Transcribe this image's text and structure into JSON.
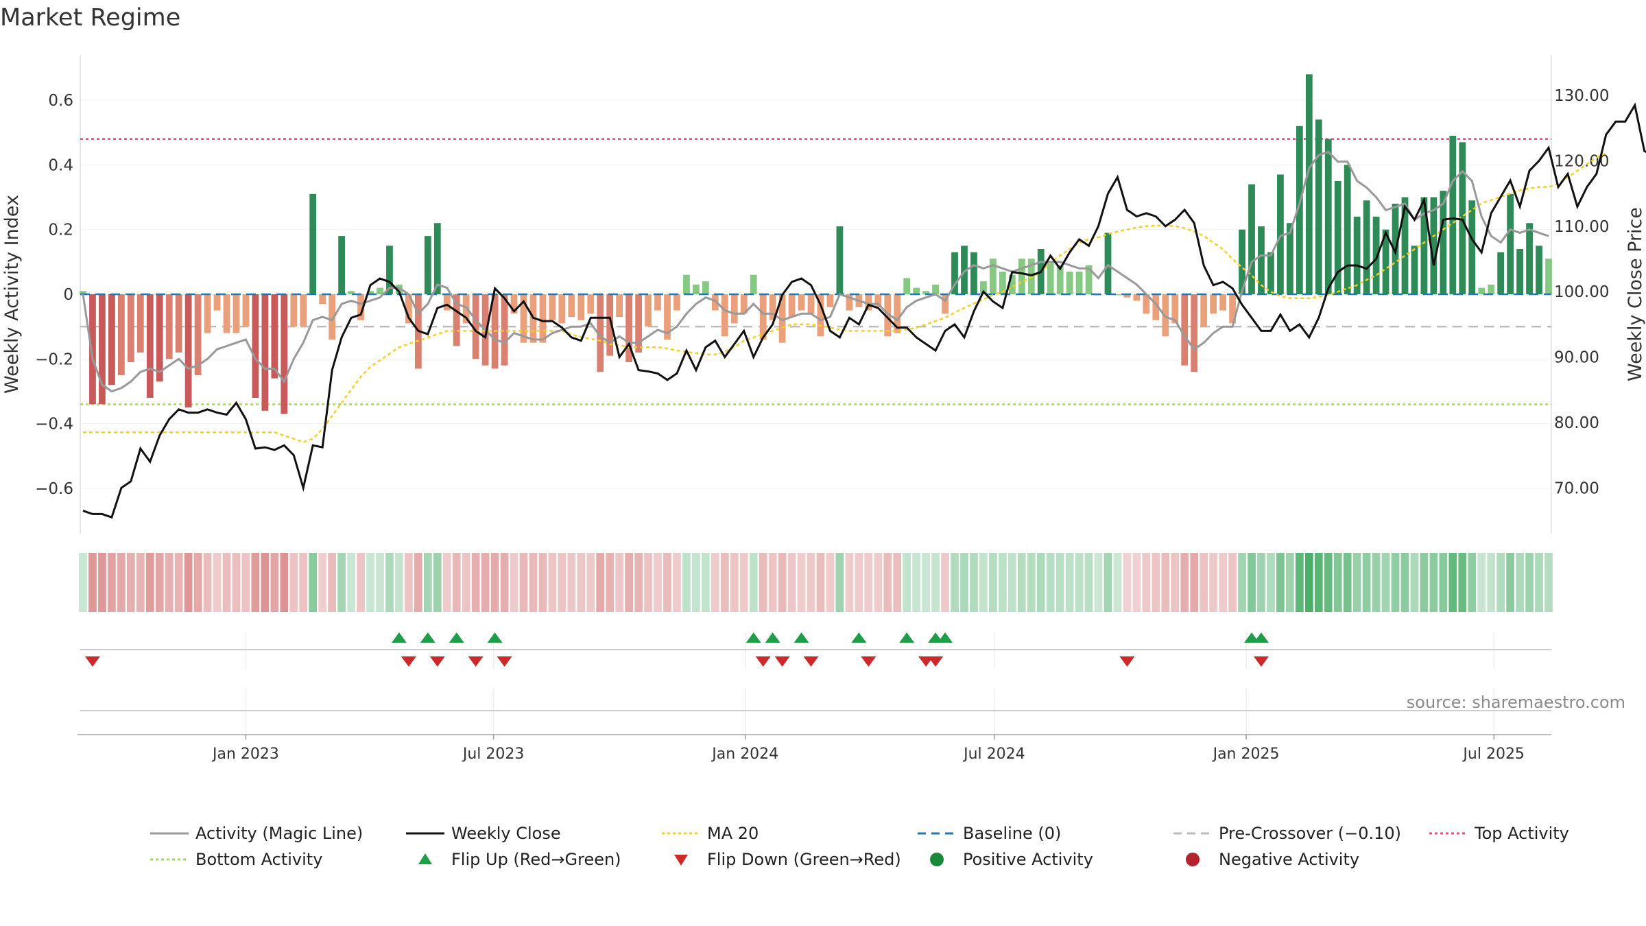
{
  "title": "Market Regime",
  "source": "source: sharemaestro.com",
  "colors": {
    "activity_line": "#999999",
    "close_line": "#111111",
    "ma20": "#f2d024",
    "baseline": "#1f77b4",
    "pre_crossover": "#bbbbbb",
    "top_activity": "#e8497a",
    "bottom_activity": "#a6d96a",
    "flip_up": "#1f9e4a",
    "flip_down": "#cc2a2a",
    "positive_activity": "#1a8a3a",
    "negative_activity": "#b5232c",
    "pos_strong": "#2e8b57",
    "pos_light": "#86c983",
    "neg_strong": "#c85a5a",
    "neg_light": "#eba07c"
  },
  "chart_data": {
    "type": "bar",
    "x_start": "2022-09-04",
    "x_step_days": 7,
    "x_ticks": [
      "Jan 2023",
      "Jul 2023",
      "Jan 2024",
      "Jul 2024",
      "Jan 2025",
      "Jul 2025"
    ],
    "x_tick_dates": [
      "2023-01-01",
      "2023-07-01",
      "2024-01-01",
      "2024-07-01",
      "2025-01-01",
      "2025-07-01"
    ],
    "y_left": {
      "label": "Weekly Activity Index",
      "ticks": [
        "0.6",
        "0.4",
        "0.2",
        "0",
        "−0.2",
        "−0.4",
        "−0.6"
      ],
      "tick_values": [
        0.6,
        0.4,
        0.2,
        0,
        -0.2,
        -0.4,
        -0.6
      ],
      "lim": [
        -0.74,
        0.74
      ]
    },
    "y_right": {
      "label": "Weekly Close Price",
      "ticks": [
        "130.00",
        "120.00",
        "110.00",
        "100.00",
        "90.00",
        "80.00",
        "70.00"
      ],
      "tick_values": [
        130,
        120,
        110,
        100,
        90,
        80,
        70
      ],
      "lim": [
        63,
        136.2
      ]
    },
    "reference_lines": {
      "top_activity": 0.48,
      "bottom_activity": -0.34,
      "baseline": 0,
      "pre_crossover": -0.1
    },
    "activity": [
      0.01,
      -0.34,
      -0.34,
      -0.28,
      -0.25,
      -0.21,
      -0.18,
      -0.32,
      -0.27,
      -0.2,
      -0.18,
      -0.35,
      -0.25,
      -0.12,
      -0.05,
      -0.12,
      -0.12,
      -0.1,
      -0.32,
      -0.36,
      -0.26,
      -0.37,
      -0.1,
      -0.1,
      0.31,
      -0.03,
      -0.14,
      0.18,
      0.01,
      -0.08,
      0.01,
      0.02,
      0.15,
      0.03,
      -0.09,
      -0.23,
      0.18,
      0.22,
      -0.05,
      -0.16,
      -0.09,
      -0.2,
      -0.22,
      -0.23,
      -0.22,
      -0.06,
      -0.15,
      -0.15,
      -0.15,
      -0.08,
      -0.09,
      -0.07,
      -0.08,
      -0.06,
      -0.24,
      -0.19,
      -0.07,
      -0.21,
      -0.18,
      -0.1,
      -0.05,
      -0.14,
      -0.05,
      0.06,
      0.03,
      0.04,
      -0.05,
      -0.13,
      -0.09,
      -0.06,
      0.06,
      -0.14,
      -0.08,
      -0.15,
      -0.07,
      -0.05,
      -0.06,
      -0.13,
      -0.04,
      0.21,
      -0.05,
      -0.04,
      -0.05,
      -0.04,
      -0.13,
      -0.12,
      0.05,
      0.02,
      0.01,
      0.03,
      -0.06,
      0.13,
      0.15,
      0.13,
      0.04,
      0.11,
      0.07,
      0.06,
      0.11,
      0.11,
      0.14,
      0.1,
      0.09,
      0.07,
      0.07,
      0.09,
      0.0,
      0.19,
      0.0,
      -0.01,
      -0.02,
      -0.06,
      -0.08,
      -0.13,
      -0.09,
      -0.22,
      -0.24,
      -0.1,
      -0.06,
      -0.05,
      -0.09,
      0.2,
      0.34,
      0.21,
      0.13,
      0.37,
      0.22,
      0.52,
      0.68,
      0.54,
      0.48,
      0.35,
      0.4,
      0.24,
      0.29,
      0.24,
      0.2,
      0.28,
      0.3,
      0.15,
      0.3,
      0.3,
      0.32,
      0.49,
      0.47,
      0.29,
      0.02,
      0.03,
      0.13,
      0.31,
      0.14,
      0.22,
      0.15,
      0.11
    ],
    "activity_magic_line": [
      0.0,
      -0.2,
      -0.28,
      -0.3,
      -0.29,
      -0.27,
      -0.24,
      -0.23,
      -0.24,
      -0.22,
      -0.2,
      -0.23,
      -0.22,
      -0.2,
      -0.17,
      -0.16,
      -0.15,
      -0.14,
      -0.2,
      -0.23,
      -0.23,
      -0.27,
      -0.2,
      -0.15,
      -0.08,
      -0.07,
      -0.08,
      -0.03,
      -0.02,
      -0.03,
      -0.02,
      -0.01,
      0.02,
      0.02,
      0.0,
      -0.06,
      -0.03,
      0.03,
      0.02,
      -0.03,
      -0.04,
      -0.08,
      -0.11,
      -0.14,
      -0.15,
      -0.12,
      -0.13,
      -0.14,
      -0.14,
      -0.12,
      -0.11,
      -0.1,
      -0.1,
      -0.09,
      -0.13,
      -0.15,
      -0.13,
      -0.15,
      -0.15,
      -0.13,
      -0.11,
      -0.12,
      -0.1,
      -0.06,
      -0.03,
      -0.01,
      -0.02,
      -0.05,
      -0.06,
      -0.06,
      -0.03,
      -0.06,
      -0.06,
      -0.08,
      -0.07,
      -0.06,
      -0.06,
      -0.08,
      -0.07,
      0.0,
      -0.01,
      -0.02,
      -0.03,
      -0.03,
      -0.06,
      -0.08,
      -0.04,
      -0.02,
      -0.01,
      0.0,
      -0.02,
      0.03,
      0.07,
      0.09,
      0.08,
      0.09,
      0.08,
      0.07,
      0.08,
      0.09,
      0.1,
      0.1,
      0.1,
      0.09,
      0.08,
      0.08,
      0.05,
      0.09,
      0.07,
      0.05,
      0.03,
      0.0,
      -0.03,
      -0.07,
      -0.08,
      -0.13,
      -0.17,
      -0.15,
      -0.12,
      -0.1,
      -0.1,
      0.01,
      0.1,
      0.12,
      0.12,
      0.18,
      0.19,
      0.28,
      0.39,
      0.43,
      0.44,
      0.41,
      0.41,
      0.35,
      0.33,
      0.3,
      0.26,
      0.27,
      0.28,
      0.23,
      0.25,
      0.26,
      0.28,
      0.35,
      0.38,
      0.35,
      0.24,
      0.18,
      0.16,
      0.2,
      0.19,
      0.2,
      0.19,
      0.18
    ],
    "weekly_close": [
      66.5,
      66,
      66,
      65.5,
      70,
      71,
      76,
      74,
      78,
      80.5,
      82,
      81.5,
      81.5,
      82,
      81.5,
      81.2,
      83,
      80.5,
      76,
      76.2,
      75.8,
      76.5,
      75,
      70,
      76.5,
      76.2,
      88,
      93,
      96,
      96.5,
      101,
      102,
      101.5,
      100,
      96,
      94,
      93.5,
      97.5,
      98,
      97,
      96,
      94,
      93,
      100.5,
      99,
      97,
      98.5,
      96,
      95.5,
      95.5,
      94.5,
      93,
      92.5,
      96,
      96,
      96,
      90,
      92,
      88,
      87.8,
      87.5,
      86.5,
      87.5,
      91,
      88,
      91.5,
      92.5,
      90,
      92,
      94,
      90,
      93,
      95,
      99.5,
      101.5,
      102,
      101,
      98,
      94,
      93,
      96,
      95,
      98,
      97.5,
      96,
      94.5,
      94.5,
      93,
      92,
      91,
      94,
      95,
      93,
      97,
      100,
      98.5,
      97.5,
      103,
      102.8,
      102.5,
      103,
      105.5,
      103.5,
      106,
      108,
      107,
      110,
      115,
      117.5,
      112.5,
      111.5,
      112,
      111.5,
      110,
      111,
      112.5,
      110.5,
      104,
      101,
      101.5,
      100.5,
      98,
      96,
      94,
      94,
      96.5,
      94,
      95,
      93,
      96,
      100.5,
      103,
      104,
      104,
      103.5,
      105,
      109,
      106,
      113,
      111,
      114,
      104,
      111,
      111.2,
      111,
      108,
      106,
      112,
      114.5,
      117,
      113,
      118.5,
      120,
      122,
      116,
      118,
      113,
      116,
      118,
      124,
      126,
      126,
      128.5,
      121.5,
      120.8
    ],
    "ma20": [
      78.5,
      78.5,
      78.5,
      78.5,
      78.5,
      78.5,
      78.5,
      78.5,
      78.5,
      78.5,
      78.5,
      78.5,
      78.5,
      78.5,
      78.5,
      78.5,
      78.5,
      78.5,
      78.5,
      78.5,
      78.5,
      78,
      77.5,
      77,
      77.5,
      79,
      81,
      83,
      85,
      87,
      88.5,
      89.5,
      90.5,
      91.5,
      92,
      92.5,
      93,
      93.5,
      94,
      94,
      94,
      94,
      94,
      94,
      94,
      94,
      94,
      94,
      94,
      94,
      94,
      93.5,
      93,
      92.8,
      92.5,
      92,
      91.8,
      91.5,
      91.5,
      91.5,
      91.5,
      91.3,
      91,
      90.8,
      90.6,
      90.4,
      90.4,
      90.8,
      91.5,
      92.5,
      93,
      93.5,
      94,
      94.5,
      95,
      95,
      95,
      94.8,
      94.5,
      94.2,
      94,
      94,
      94,
      94,
      94,
      94,
      94.2,
      94.5,
      95,
      95.5,
      96,
      96.8,
      97.5,
      98.2,
      98.8,
      99.5,
      100,
      100.7,
      101.5,
      102.2,
      103,
      104.5,
      105.5,
      106.5,
      107.5,
      108,
      108.3,
      108.8,
      109.2,
      109.5,
      109.8,
      110,
      110.1,
      110.1,
      110,
      109.7,
      109.2,
      108.5,
      107.5,
      106.5,
      105,
      103.7,
      102.5,
      101,
      100,
      99.3,
      99,
      99,
      99,
      99.2,
      99.5,
      100,
      100.5,
      101,
      101.8,
      102.5,
      103.5,
      104.5,
      105.5,
      106.5,
      107.5,
      108.5,
      109.5,
      110.5,
      111.5,
      112.5,
      113.5,
      114,
      114.5,
      115,
      115.5,
      115.8,
      116,
      116,
      116.5,
      117.5,
      118.5,
      119.5,
      120.5,
      121.2
    ],
    "flip_up_dates": [
      "2023-04-23",
      "2023-05-14",
      "2023-06-04",
      "2023-07-02",
      "2024-01-07",
      "2024-01-21",
      "2024-02-11",
      "2024-03-24",
      "2024-04-28",
      "2024-05-19",
      "2024-05-26",
      "2025-01-05",
      "2025-01-12"
    ],
    "flip_down_dates": [
      "2022-09-11",
      "2023-04-30",
      "2023-05-21",
      "2023-06-18",
      "2023-07-09",
      "2024-01-14",
      "2024-01-28",
      "2024-02-18",
      "2024-03-31",
      "2024-05-12",
      "2024-05-19",
      "2024-10-06",
      "2025-01-12"
    ]
  },
  "legend": [
    {
      "label": "Activity (Magic Line)",
      "symbol": "solid-gray-line"
    },
    {
      "label": "Weekly Close",
      "symbol": "solid-black-line"
    },
    {
      "label": "MA 20",
      "symbol": "dotted-yellow-line"
    },
    {
      "label": "Baseline (0)",
      "symbol": "dashed-blue-line"
    },
    {
      "label": "Pre-Crossover (−0.10)",
      "symbol": "dashed-gray-line"
    },
    {
      "label": "Top Activity",
      "symbol": "dotted-pink-line"
    },
    {
      "label": "Bottom Activity",
      "symbol": "dotted-green-line"
    },
    {
      "label": "Flip Up (Red→Green)",
      "symbol": "green-up-triangle"
    },
    {
      "label": "Flip Down (Green→Red)",
      "symbol": "red-down-triangle"
    },
    {
      "label": "Positive Activity",
      "symbol": "green-circle"
    },
    {
      "label": "Negative Activity",
      "symbol": "red-circle"
    }
  ]
}
